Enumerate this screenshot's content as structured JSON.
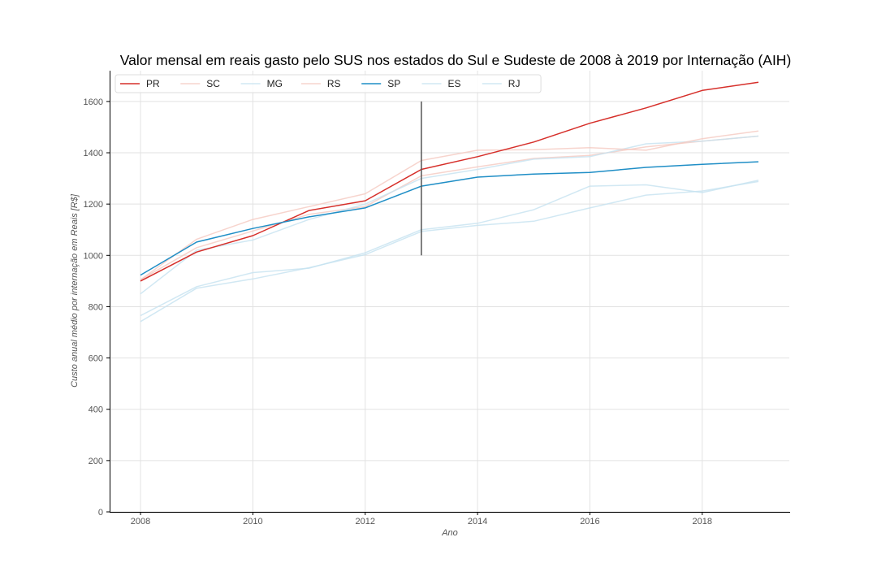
{
  "chart_data": {
    "type": "line",
    "title": "Valor mensal em reais gasto pelo SUS nos estados do Sul e Sudeste de 2008 à 2019 por Internação (AIH)",
    "xlabel": "Ano",
    "ylabel": "Custo anual médio por internação em Reais [R$]",
    "xlim": [
      2007.45,
      2019.55
    ],
    "ylim": [
      0,
      1720
    ],
    "xticks": [
      2008,
      2010,
      2012,
      2014,
      2016,
      2018
    ],
    "yticks": [
      0,
      200,
      400,
      600,
      800,
      1000,
      1200,
      1400,
      1600
    ],
    "grid": true,
    "legend_position": "top-left",
    "legend_columns": 7,
    "x": [
      2008,
      2009,
      2010,
      2011,
      2012,
      2013,
      2014,
      2015,
      2016,
      2017,
      2018,
      2019
    ],
    "series": [
      {
        "name": "PR",
        "color": "#d62f2a",
        "opacity": 1.0,
        "values": [
          900,
          1013,
          1077,
          1175,
          1213,
          1335,
          1385,
          1442,
          1515,
          1575,
          1643,
          1675
        ]
      },
      {
        "name": "SC",
        "color": "#f5c9c0",
        "opacity": 0.8,
        "values": [
          905,
          1030,
          1095,
          1160,
          1190,
          1310,
          1345,
          1378,
          1390,
          1423,
          1445,
          1465
        ]
      },
      {
        "name": "MG",
        "color": "#c6e2f0",
        "opacity": 0.8,
        "values": [
          850,
          1020,
          1060,
          1140,
          1200,
          1300,
          1335,
          1375,
          1385,
          1435,
          1445,
          1465
        ]
      },
      {
        "name": "RS",
        "color": "#f5c9c0",
        "opacity": 0.8,
        "values": [
          905,
          1063,
          1140,
          1190,
          1240,
          1370,
          1410,
          1412,
          1420,
          1410,
          1455,
          1485
        ]
      },
      {
        "name": "SP",
        "color": "#1f8ec6",
        "opacity": 1.0,
        "values": [
          923,
          1052,
          1105,
          1150,
          1185,
          1270,
          1305,
          1317,
          1323,
          1343,
          1355,
          1365
        ]
      },
      {
        "name": "ES",
        "color": "#c6e2f0",
        "opacity": 0.8,
        "values": [
          765,
          878,
          933,
          950,
          1010,
          1100,
          1125,
          1178,
          1270,
          1275,
          1245,
          1293
        ]
      },
      {
        "name": "RJ",
        "color": "#c6e2f0",
        "opacity": 0.8,
        "values": [
          742,
          872,
          908,
          952,
          1003,
          1093,
          1117,
          1133,
          1185,
          1235,
          1251,
          1288
        ]
      }
    ],
    "annotations": [
      {
        "type": "vertical-line",
        "x": 2013,
        "y_from": 1000,
        "y_to": 1600,
        "color": "#555555"
      }
    ]
  }
}
